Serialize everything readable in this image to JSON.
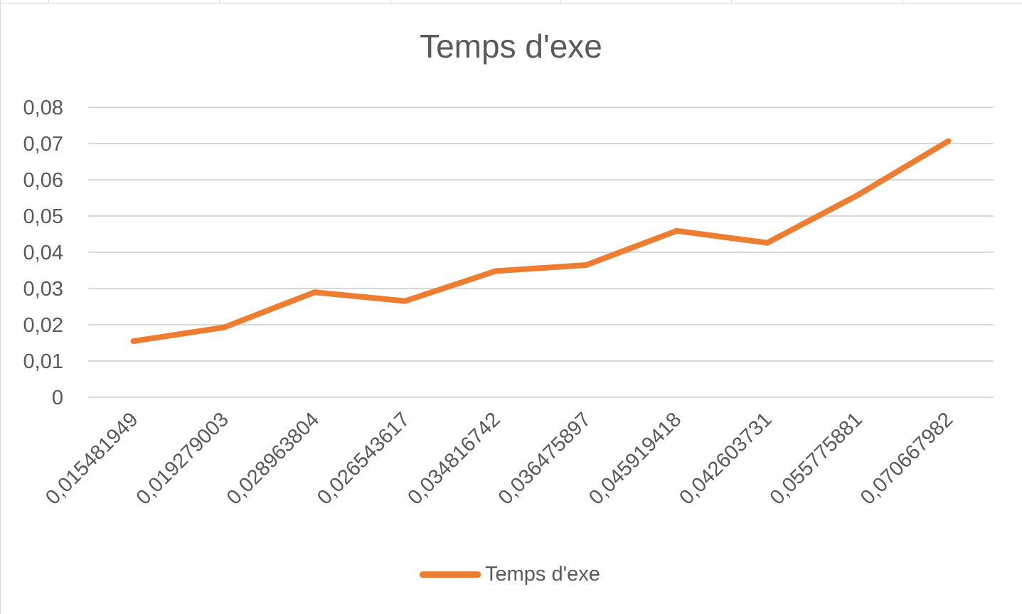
{
  "chart_data": {
    "type": "line",
    "title": "Temps d'exe",
    "xlabel": "",
    "ylabel": "",
    "categories": [
      "0,015481949",
      "0,019279003",
      "0,028963804",
      "0,026543617",
      "0,034816742",
      "0,036475897",
      "0,045919418",
      "0,042603731",
      "0,055775881",
      "0,070667982"
    ],
    "series": [
      {
        "name": "Temps d'exe",
        "values": [
          0.015481949,
          0.019279003,
          0.028963804,
          0.026543617,
          0.034816742,
          0.036475897,
          0.045919418,
          0.042603731,
          0.055775881,
          0.070667982
        ]
      }
    ],
    "ylim": [
      0,
      0.08
    ],
    "yticks": [
      "0",
      "0,01",
      "0,02",
      "0,03",
      "0,04",
      "0,05",
      "0,06",
      "0,07",
      "0,08"
    ],
    "grid": true,
    "legend": "bottom",
    "colors": {
      "series": "#ED7D31",
      "grid": "#d9d9d9",
      "text": "#595959"
    }
  }
}
